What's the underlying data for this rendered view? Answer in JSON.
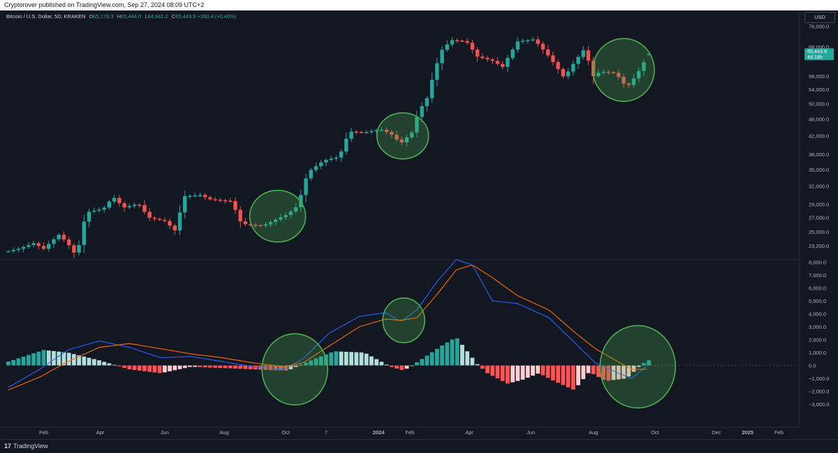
{
  "header": {
    "published": "Cryptorover published on TradingView.com, Sep 27, 2024 08:09 UTC+2"
  },
  "legend": {
    "symbol": "Bitcoin / U.S. Dollar, 5D, KRAKEN",
    "o_label": "O",
    "o": "65,179.3",
    "h_label": "H",
    "h": "65,444.0",
    "l_label": "L",
    "l": "64,841.2",
    "c_label": "C",
    "c": "65,443.9",
    "change": "+260.4 (+0.40%)"
  },
  "currency": "USD",
  "price_badge": {
    "price": "65,443.9",
    "countdown": "4d 18h"
  },
  "footer": {
    "logo": "17",
    "brand": "TradingView"
  },
  "colors": {
    "up": "#26a69a",
    "down": "#ef5350",
    "hist_up_strong": "#26a69a",
    "hist_up_weak": "#b2dfdb",
    "hist_down_strong": "#ff5252",
    "hist_down_weak": "#ffcdd2",
    "macd": "#2962ff",
    "signal": "#ff6d00",
    "circle": "#4caf50",
    "background": "#131722"
  },
  "chart_data": [
    {
      "type": "candlestick",
      "title": "Bitcoin / U.S. Dollar, 5D, KRAKEN",
      "y_scale": "log",
      "ylim": [
        21500,
        80000
      ],
      "yticks": [
        "76,000.0",
        "68,000.0",
        "58,000.0",
        "54,000.0",
        "50,000.0",
        "46,000.0",
        "42,000.0",
        "38,000.0",
        "35,000.0",
        "32,000.0",
        "29,000.0",
        "27,000.0",
        "25,000.0",
        "23,200.0"
      ],
      "xticks": [
        "Feb",
        "Apr",
        "Jun",
        "Aug",
        "Oct",
        "7",
        "2024",
        "Feb",
        "Apr",
        "Jun",
        "Aug",
        "Oct",
        "Dec",
        "2025",
        "Feb"
      ],
      "x_range": [
        "2023-01-01",
        "2025-02-20"
      ],
      "grid": false,
      "anchors": [
        [
          "2023-01-01",
          22500
        ],
        [
          "2023-01-11",
          22800
        ],
        [
          "2023-01-26",
          23500
        ],
        [
          "2023-02-05",
          22800
        ],
        [
          "2023-02-20",
          24600
        ],
        [
          "2023-02-28",
          23600
        ],
        [
          "2023-03-10",
          21800
        ],
        [
          "2023-03-15",
          25500
        ],
        [
          "2023-03-20",
          27800
        ],
        [
          "2023-04-05",
          28300
        ],
        [
          "2023-04-15",
          30200
        ],
        [
          "2023-04-25",
          28500
        ],
        [
          "2023-05-10",
          29100
        ],
        [
          "2023-05-20",
          27000
        ],
        [
          "2023-06-05",
          26500
        ],
        [
          "2023-06-15",
          25200
        ],
        [
          "2023-06-25",
          30300
        ],
        [
          "2023-07-10",
          30500
        ],
        [
          "2023-07-20",
          29800
        ],
        [
          "2023-08-10",
          29500
        ],
        [
          "2023-08-20",
          26100
        ],
        [
          "2023-09-10",
          25800
        ],
        [
          "2023-09-20",
          26500
        ],
        [
          "2023-10-05",
          27500
        ],
        [
          "2023-10-15",
          28800
        ],
        [
          "2023-10-25",
          34500
        ],
        [
          "2023-11-10",
          36800
        ],
        [
          "2023-11-25",
          37500
        ],
        [
          "2023-12-05",
          43000
        ],
        [
          "2023-12-20",
          42800
        ],
        [
          "2024-01-05",
          43500
        ],
        [
          "2024-01-15",
          42500
        ],
        [
          "2024-01-25",
          40300
        ],
        [
          "2024-02-05",
          42800
        ],
        [
          "2024-02-12",
          48000
        ],
        [
          "2024-02-20",
          51500
        ],
        [
          "2024-03-05",
          66500
        ],
        [
          "2024-03-15",
          70500
        ],
        [
          "2024-03-30",
          70000
        ],
        [
          "2024-04-10",
          64500
        ],
        [
          "2024-04-25",
          63000
        ],
        [
          "2024-05-05",
          61000
        ],
        [
          "2024-05-20",
          70000
        ],
        [
          "2024-06-05",
          70800
        ],
        [
          "2024-06-20",
          64500
        ],
        [
          "2024-07-05",
          57500
        ],
        [
          "2024-07-15",
          62500
        ],
        [
          "2024-07-25",
          67200
        ],
        [
          "2024-08-03",
          58000
        ],
        [
          "2024-08-10",
          59500
        ],
        [
          "2024-08-25",
          59000
        ],
        [
          "2024-09-05",
          54500
        ],
        [
          "2024-09-15",
          58500
        ],
        [
          "2024-09-27",
          65443.9
        ]
      ],
      "last": {
        "date": "2024-09-27",
        "open": 65179.3,
        "high": 65444.0,
        "low": 64841.2,
        "close": 65443.9
      },
      "annotations": [
        "circle around 2023-10 base",
        "circle around 2024-01 pullback",
        "circle around 2024-09 recovery"
      ]
    },
    {
      "type": "macd",
      "ylim": [
        -3700,
        8200
      ],
      "yticks": [
        "8,000.0",
        "7,000.0",
        "6,000.0",
        "5,000.0",
        "4,000.0",
        "3,000.0",
        "2,000.0",
        "1,000.0",
        "0.0",
        "−1,000.0",
        "−2,000.0",
        "−3,000.0"
      ],
      "series": [
        {
          "name": "MACD",
          "points": [
            [
              "2023-01-01",
              -1700
            ],
            [
              "2023-02-01",
              -300
            ],
            [
              "2023-03-01",
              1200
            ],
            [
              "2023-04-01",
              1900
            ],
            [
              "2023-05-01",
              1400
            ],
            [
              "2023-06-01",
              600
            ],
            [
              "2023-07-01",
              700
            ],
            [
              "2023-08-01",
              300
            ],
            [
              "2023-09-01",
              -100
            ],
            [
              "2023-10-01",
              -300
            ],
            [
              "2023-10-20",
              500
            ],
            [
              "2023-11-15",
              2500
            ],
            [
              "2023-12-15",
              3800
            ],
            [
              "2024-01-10",
              4100
            ],
            [
              "2024-01-25",
              3400
            ],
            [
              "2024-02-10",
              4300
            ],
            [
              "2024-03-01",
              6500
            ],
            [
              "2024-03-20",
              8200
            ],
            [
              "2024-04-05",
              7800
            ],
            [
              "2024-04-25",
              5000
            ],
            [
              "2024-05-20",
              4800
            ],
            [
              "2024-06-20",
              3700
            ],
            [
              "2024-07-15",
              1800
            ],
            [
              "2024-08-05",
              200
            ],
            [
              "2024-08-25",
              -500
            ],
            [
              "2024-09-10",
              -1000
            ],
            [
              "2024-09-27",
              100
            ]
          ]
        },
        {
          "name": "Signal",
          "points": [
            [
              "2023-01-01",
              -1900
            ],
            [
              "2023-02-01",
              -900
            ],
            [
              "2023-03-01",
              300
            ],
            [
              "2023-04-01",
              1400
            ],
            [
              "2023-05-01",
              1700
            ],
            [
              "2023-06-01",
              1300
            ],
            [
              "2023-07-01",
              900
            ],
            [
              "2023-08-01",
              600
            ],
            [
              "2023-09-01",
              200
            ],
            [
              "2023-10-01",
              -100
            ],
            [
              "2023-10-20",
              200
            ],
            [
              "2023-11-15",
              1500
            ],
            [
              "2023-12-15",
              3000
            ],
            [
              "2024-01-10",
              3600
            ],
            [
              "2024-01-25",
              3500
            ],
            [
              "2024-02-10",
              3700
            ],
            [
              "2024-03-01",
              5500
            ],
            [
              "2024-03-20",
              7400
            ],
            [
              "2024-04-05",
              7800
            ],
            [
              "2024-04-25",
              6800
            ],
            [
              "2024-05-20",
              5400
            ],
            [
              "2024-06-20",
              4300
            ],
            [
              "2024-07-15",
              2600
            ],
            [
              "2024-08-05",
              1300
            ],
            [
              "2024-08-25",
              400
            ],
            [
              "2024-09-10",
              -300
            ],
            [
              "2024-09-27",
              -300
            ]
          ]
        }
      ],
      "histogram_anchors": [
        [
          "2023-01-01",
          300
        ],
        [
          "2023-02-05",
          1200
        ],
        [
          "2023-03-01",
          1000
        ],
        [
          "2023-04-01",
          400
        ],
        [
          "2023-05-01",
          -300
        ],
        [
          "2023-06-01",
          -600
        ],
        [
          "2023-07-01",
          -100
        ],
        [
          "2023-08-01",
          -200
        ],
        [
          "2023-09-01",
          -300
        ],
        [
          "2023-10-05",
          -400
        ],
        [
          "2023-10-25",
          300
        ],
        [
          "2023-11-20",
          1100
        ],
        [
          "2023-12-20",
          1000
        ],
        [
          "2024-01-15",
          -100
        ],
        [
          "2024-01-28",
          -400
        ],
        [
          "2024-02-15",
          500
        ],
        [
          "2024-03-05",
          1500
        ],
        [
          "2024-03-20",
          2200
        ],
        [
          "2024-04-10",
          100
        ],
        [
          "2024-04-20",
          -600
        ],
        [
          "2024-05-10",
          -1400
        ],
        [
          "2024-05-25",
          -1100
        ],
        [
          "2024-06-10",
          -600
        ],
        [
          "2024-06-25",
          -1200
        ],
        [
          "2024-07-15",
          -1900
        ],
        [
          "2024-07-30",
          -500
        ],
        [
          "2024-08-15",
          -1200
        ],
        [
          "2024-09-05",
          -1000
        ],
        [
          "2024-09-20",
          100
        ],
        [
          "2024-09-27",
          400
        ]
      ],
      "annotations": [
        "circle around 2023-10 crossover",
        "circle around 2024-01 dip",
        "circle around 2024-09 crossover"
      ]
    }
  ]
}
